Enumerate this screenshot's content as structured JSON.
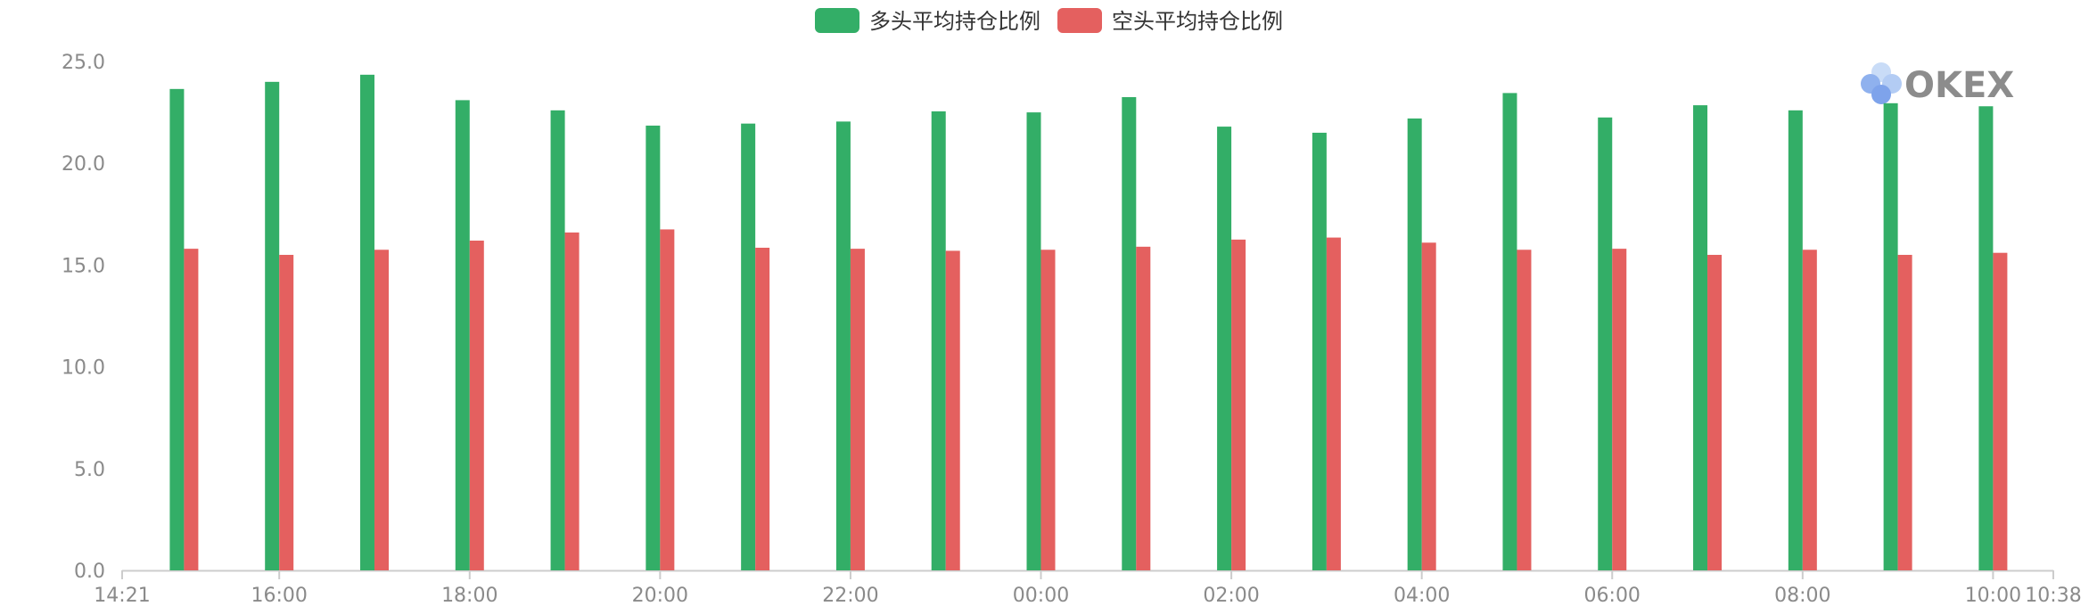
{
  "legend": {
    "long_label": "多头平均持仓比例",
    "short_label": "空头平均持仓比例"
  },
  "logo": {
    "text": "OKEX"
  },
  "colors": {
    "long": "#33ae67",
    "short": "#e4605f",
    "axis": "#cccccc",
    "tick_text": "#8a8a8a"
  },
  "chart_data": {
    "type": "bar",
    "title": "",
    "xlabel": "",
    "ylabel": "",
    "ylim": [
      0,
      25
    ],
    "y_ticks": [
      "0.0",
      "5.0",
      "10.0",
      "15.0",
      "20.0",
      "25.0"
    ],
    "x_range_hours": [
      14.35,
      34.633
    ],
    "x_ticks": [
      {
        "hour": 14.35,
        "label": "14:21"
      },
      {
        "hour": 16,
        "label": "16:00"
      },
      {
        "hour": 18,
        "label": "18:00"
      },
      {
        "hour": 20,
        "label": "20:00"
      },
      {
        "hour": 22,
        "label": "22:00"
      },
      {
        "hour": 24,
        "label": "00:00"
      },
      {
        "hour": 26,
        "label": "02:00"
      },
      {
        "hour": 28,
        "label": "04:00"
      },
      {
        "hour": 30,
        "label": "06:00"
      },
      {
        "hour": 32,
        "label": "08:00"
      },
      {
        "hour": 34,
        "label": "10:00"
      },
      {
        "hour": 34.633,
        "label": "10:38"
      }
    ],
    "categories": [
      "15:00",
      "16:00",
      "17:00",
      "18:00",
      "19:00",
      "20:00",
      "21:00",
      "22:00",
      "23:00",
      "00:00",
      "01:00",
      "02:00",
      "03:00",
      "04:00",
      "05:00",
      "06:00",
      "07:00",
      "08:00",
      "09:00",
      "10:00"
    ],
    "series": [
      {
        "name": "多头平均持仓比例",
        "color": "#33ae67",
        "values": [
          23.65,
          24.0,
          24.35,
          23.1,
          22.6,
          21.85,
          21.95,
          22.05,
          22.55,
          22.5,
          23.25,
          21.8,
          21.5,
          22.2,
          23.45,
          22.25,
          22.85,
          22.6,
          22.95,
          22.8
        ]
      },
      {
        "name": "空头平均持仓比例",
        "color": "#e4605f",
        "values": [
          15.8,
          15.5,
          15.75,
          16.2,
          16.6,
          16.75,
          15.85,
          15.8,
          15.7,
          15.75,
          15.9,
          16.25,
          16.35,
          16.1,
          15.75,
          15.8,
          15.5,
          15.75,
          15.5,
          15.6
        ]
      }
    ],
    "grid": false,
    "legend_position": "top-center"
  }
}
